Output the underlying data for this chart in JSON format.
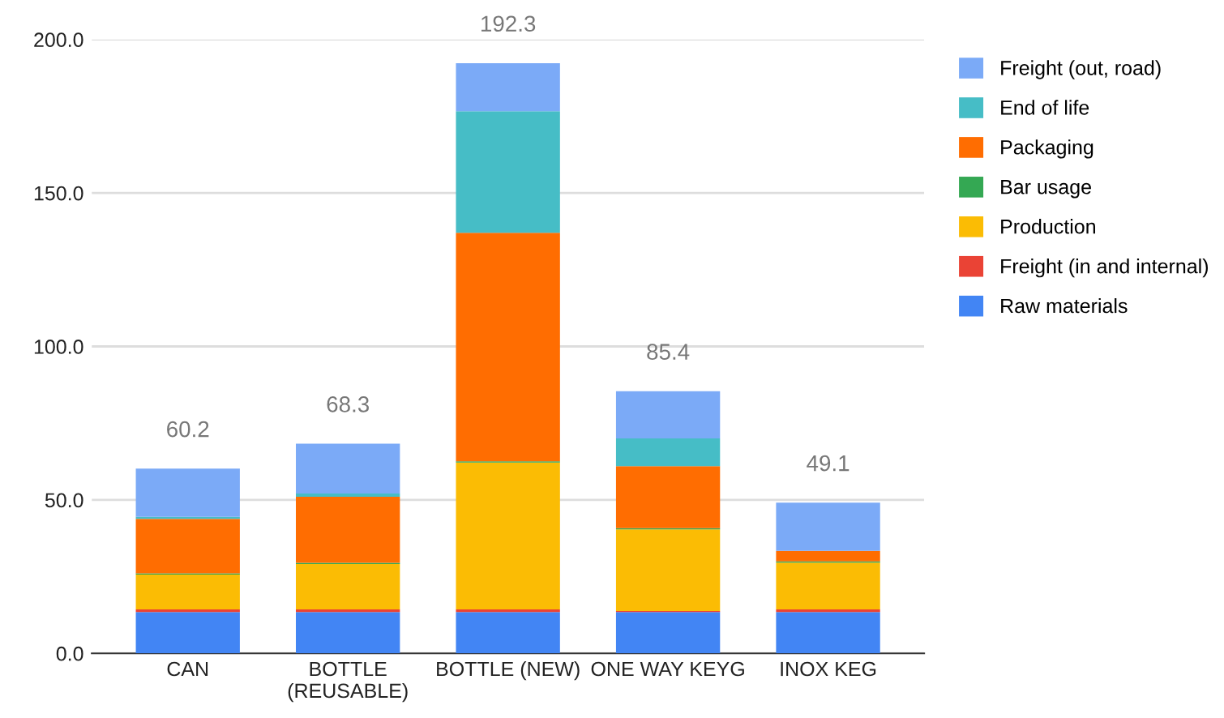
{
  "chart_data": {
    "type": "bar",
    "stacked": true,
    "categories": [
      "CAN",
      "BOTTLE (REUSABLE)",
      "BOTTLE (NEW)",
      "ONE WAY KEYG",
      "INOX KEG"
    ],
    "series": [
      {
        "name": "Raw materials",
        "color": "#4285f4",
        "values": [
          13.5,
          13.5,
          13.5,
          13.5,
          13.5
        ]
      },
      {
        "name": "Freight (in and internal)",
        "color": "#ea4335",
        "values": [
          0.8,
          0.8,
          0.8,
          0.3,
          0.8
        ]
      },
      {
        "name": "Production",
        "color": "#fbbc04",
        "values": [
          11.4,
          14.8,
          47.9,
          26.6,
          15.3
        ]
      },
      {
        "name": "Bar usage",
        "color": "#34a853",
        "values": [
          0.4,
          0.4,
          0.4,
          0.4,
          0.4
        ]
      },
      {
        "name": "Packaging",
        "color": "#ff6d01",
        "values": [
          17.7,
          21.5,
          74.4,
          20.2,
          3.4
        ]
      },
      {
        "name": "End of life",
        "color": "#46bdc6",
        "values": [
          0.7,
          1.1,
          39.6,
          9.0,
          0
        ]
      },
      {
        "name": "Freight (out, road)",
        "color": "#7baaf7",
        "values": [
          15.7,
          16.2,
          15.7,
          15.4,
          15.7
        ]
      }
    ],
    "totals": [
      "60.2",
      "68.3",
      "192.3",
      "85.4",
      "49.1"
    ],
    "ylim": [
      0,
      200
    ],
    "yticks": [
      {
        "value": 0,
        "label": "0.0"
      },
      {
        "value": 50,
        "label": "50.0"
      },
      {
        "value": 100,
        "label": "100.0"
      },
      {
        "value": 150,
        "label": "150.0"
      },
      {
        "value": 200,
        "label": "200.0"
      }
    ],
    "grid": "y",
    "legend": "right"
  }
}
